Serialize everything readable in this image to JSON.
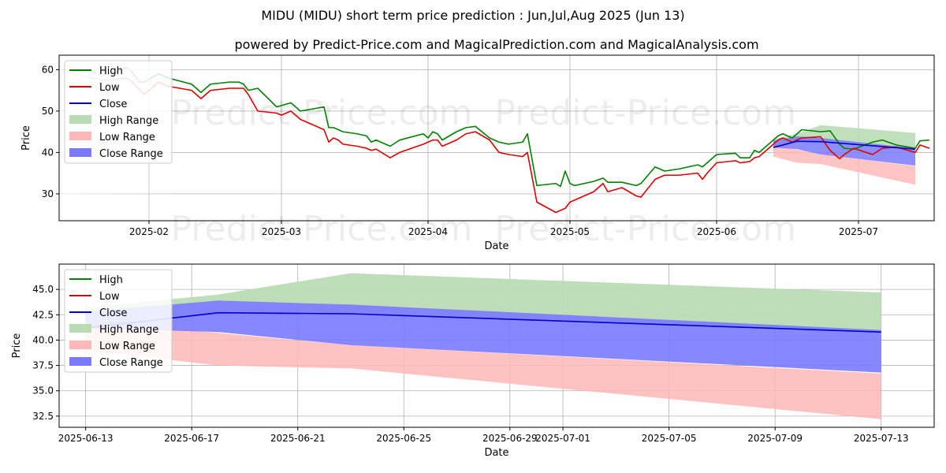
{
  "title": "MIDU (MIDU) short term price prediction : Jun,Jul,Aug 2025 (Jun 13)",
  "subtitle": "powered by Predict-Price.com and MagicalPrediction.com and MagicalAnalysis.com",
  "watermark": "Predict-Price.com",
  "colors": {
    "high": "#008000",
    "low": "#e00000",
    "close": "#0000cc",
    "high_range": "#b9dcb4",
    "low_range": "#ffb7b7",
    "close_range": "#7a7aff"
  },
  "legend": [
    "High",
    "Low",
    "Close",
    "High Range",
    "Low Range",
    "Close Range"
  ],
  "chart_data": [
    {
      "type": "line",
      "panel": "history",
      "xlabel": "Date",
      "ylabel": "Price",
      "ylim": [
        23.5,
        63.5
      ],
      "yticks": [
        30,
        40,
        50,
        60
      ],
      "xlim": [
        "2025-01-13",
        "2025-07-17"
      ],
      "xticks": [
        {
          "date": "2025-02-01",
          "label": "2025-02"
        },
        {
          "date": "2025-03-01",
          "label": "2025-03"
        },
        {
          "date": "2025-04-01",
          "label": "2025-04"
        },
        {
          "date": "2025-05-01",
          "label": "2025-05"
        },
        {
          "date": "2025-06-01",
          "label": "2025-06"
        },
        {
          "date": "2025-07-01",
          "label": "2025-07"
        }
      ],
      "high": [
        [
          "2025-01-14",
          61
        ],
        [
          "2025-01-16",
          60.5
        ],
        [
          "2025-01-20",
          59.5
        ],
        [
          "2025-01-22",
          58.5
        ],
        [
          "2025-01-24",
          59
        ],
        [
          "2025-01-27",
          60.5
        ],
        [
          "2025-01-28",
          60
        ],
        [
          "2025-01-30",
          57
        ],
        [
          "2025-01-31",
          57
        ],
        [
          "2025-02-03",
          59
        ],
        [
          "2025-02-05",
          58
        ],
        [
          "2025-02-10",
          56.5
        ],
        [
          "2025-02-12",
          54.5
        ],
        [
          "2025-02-14",
          56.5
        ],
        [
          "2025-02-18",
          57
        ],
        [
          "2025-02-20",
          57
        ],
        [
          "2025-02-21",
          56.5
        ],
        [
          "2025-02-22",
          55
        ],
        [
          "2025-02-24",
          55.5
        ],
        [
          "2025-02-28",
          51
        ],
        [
          "2025-03-03",
          52
        ],
        [
          "2025-03-05",
          50
        ],
        [
          "2025-03-10",
          51
        ],
        [
          "2025-03-11",
          46
        ],
        [
          "2025-03-12",
          46
        ],
        [
          "2025-03-14",
          45
        ],
        [
          "2025-03-17",
          44.5
        ],
        [
          "2025-03-19",
          44
        ],
        [
          "2025-03-20",
          42.5
        ],
        [
          "2025-03-21",
          43
        ],
        [
          "2025-03-24",
          41.5
        ],
        [
          "2025-03-26",
          43
        ],
        [
          "2025-03-31",
          44.5
        ],
        [
          "2025-04-01",
          43.5
        ],
        [
          "2025-04-02",
          45
        ],
        [
          "2025-04-03",
          44.5
        ],
        [
          "2025-04-04",
          43
        ],
        [
          "2025-04-07",
          45
        ],
        [
          "2025-04-09",
          46
        ],
        [
          "2025-04-11",
          46.3
        ],
        [
          "2025-04-14",
          43.5
        ],
        [
          "2025-04-16",
          42.5
        ],
        [
          "2025-04-18",
          42
        ],
        [
          "2025-04-21",
          42.5
        ],
        [
          "2025-04-22",
          44.5
        ],
        [
          "2025-04-24",
          32
        ],
        [
          "2025-04-28",
          32.5
        ],
        [
          "2025-04-29",
          31.8
        ],
        [
          "2025-04-30",
          35.5
        ],
        [
          "2025-05-01",
          32.5
        ],
        [
          "2025-05-02",
          32
        ],
        [
          "2025-05-06",
          33
        ],
        [
          "2025-05-08",
          33.8
        ],
        [
          "2025-05-09",
          32.8
        ],
        [
          "2025-05-12",
          32.8
        ],
        [
          "2025-05-15",
          32
        ],
        [
          "2025-05-16",
          32.5
        ],
        [
          "2025-05-19",
          36.5
        ],
        [
          "2025-05-21",
          35.5
        ],
        [
          "2025-05-24",
          36
        ],
        [
          "2025-05-28",
          37
        ],
        [
          "2025-05-29",
          36.5
        ],
        [
          "2025-05-30",
          37.5
        ],
        [
          "2025-06-01",
          39.5
        ],
        [
          "2025-06-05",
          39.8
        ],
        [
          "2025-06-06",
          38.7
        ],
        [
          "2025-06-08",
          38.7
        ],
        [
          "2025-06-09",
          40.5
        ],
        [
          "2025-06-10",
          40
        ],
        [
          "2025-06-14",
          44
        ],
        [
          "2025-06-15",
          44.5
        ],
        [
          "2025-06-17",
          43.5
        ],
        [
          "2025-06-19",
          45.5
        ],
        [
          "2025-06-23",
          45
        ],
        [
          "2025-06-25",
          45.2
        ],
        [
          "2025-06-27",
          42
        ],
        [
          "2025-06-28",
          41
        ],
        [
          "2025-06-30",
          40.8
        ],
        [
          "2025-07-04",
          42.5
        ],
        [
          "2025-07-06",
          43
        ],
        [
          "2025-07-09",
          41.8
        ],
        [
          "2025-07-13",
          41
        ],
        [
          "2025-07-14",
          42.8
        ],
        [
          "2025-07-16",
          43
        ]
      ],
      "low": [
        [
          "2025-01-14",
          60
        ],
        [
          "2025-01-16",
          59
        ],
        [
          "2025-01-20",
          58
        ],
        [
          "2025-01-22",
          57.5
        ],
        [
          "2025-01-24",
          57.5
        ],
        [
          "2025-01-27",
          58
        ],
        [
          "2025-01-28",
          57.5
        ],
        [
          "2025-01-31",
          54
        ],
        [
          "2025-02-03",
          57
        ],
        [
          "2025-02-05",
          56
        ],
        [
          "2025-02-10",
          55
        ],
        [
          "2025-02-12",
          53
        ],
        [
          "2025-02-14",
          55
        ],
        [
          "2025-02-18",
          55.5
        ],
        [
          "2025-02-20",
          55.5
        ],
        [
          "2025-02-21",
          55.5
        ],
        [
          "2025-02-22",
          54
        ],
        [
          "2025-02-24",
          50
        ],
        [
          "2025-02-28",
          49.5
        ],
        [
          "2025-03-01",
          49
        ],
        [
          "2025-03-03",
          50
        ],
        [
          "2025-03-05",
          48
        ],
        [
          "2025-03-09",
          46
        ],
        [
          "2025-03-10",
          45.5
        ],
        [
          "2025-03-11",
          42.5
        ],
        [
          "2025-03-12",
          43.5
        ],
        [
          "2025-03-13",
          43
        ],
        [
          "2025-03-14",
          42
        ],
        [
          "2025-03-17",
          41.5
        ],
        [
          "2025-03-19",
          41
        ],
        [
          "2025-03-20",
          40.5
        ],
        [
          "2025-03-21",
          40.8
        ],
        [
          "2025-03-24",
          38.7
        ],
        [
          "2025-03-26",
          40
        ],
        [
          "2025-03-31",
          42
        ],
        [
          "2025-04-01",
          42.5
        ],
        [
          "2025-04-02",
          43
        ],
        [
          "2025-04-03",
          43
        ],
        [
          "2025-04-04",
          41.5
        ],
        [
          "2025-04-07",
          43
        ],
        [
          "2025-04-09",
          44.5
        ],
        [
          "2025-04-11",
          45
        ],
        [
          "2025-04-14",
          43
        ],
        [
          "2025-04-16",
          40
        ],
        [
          "2025-04-18",
          39.5
        ],
        [
          "2025-04-21",
          39
        ],
        [
          "2025-04-22",
          40
        ],
        [
          "2025-04-24",
          28
        ],
        [
          "2025-04-28",
          25.5
        ],
        [
          "2025-04-29",
          26
        ],
        [
          "2025-04-30",
          26.5
        ],
        [
          "2025-05-01",
          28
        ],
        [
          "2025-05-02",
          28.5
        ],
        [
          "2025-05-06",
          30.5
        ],
        [
          "2025-05-08",
          32.5
        ],
        [
          "2025-05-09",
          30.5
        ],
        [
          "2025-05-12",
          31.5
        ],
        [
          "2025-05-15",
          29.5
        ],
        [
          "2025-05-16",
          29.2
        ],
        [
          "2025-05-19",
          33.5
        ],
        [
          "2025-05-21",
          34.5
        ],
        [
          "2025-05-24",
          34.5
        ],
        [
          "2025-05-28",
          35
        ],
        [
          "2025-05-29",
          33.5
        ],
        [
          "2025-05-30",
          35
        ],
        [
          "2025-06-01",
          37.5
        ],
        [
          "2025-06-05",
          38
        ],
        [
          "2025-06-06",
          37.5
        ],
        [
          "2025-06-08",
          37.8
        ],
        [
          "2025-06-09",
          38.7
        ],
        [
          "2025-06-10",
          39
        ],
        [
          "2025-06-14",
          43
        ],
        [
          "2025-06-15",
          43.5
        ],
        [
          "2025-06-17",
          42.5
        ],
        [
          "2025-06-19",
          43.5
        ],
        [
          "2025-06-23",
          43.8
        ],
        [
          "2025-06-25",
          40.5
        ],
        [
          "2025-06-27",
          38.5
        ],
        [
          "2025-06-28",
          39.5
        ],
        [
          "2025-06-30",
          41
        ],
        [
          "2025-07-04",
          39.5
        ],
        [
          "2025-07-06",
          41
        ],
        [
          "2025-07-09",
          41.3
        ],
        [
          "2025-07-13",
          40
        ],
        [
          "2025-07-14",
          41.8
        ],
        [
          "2025-07-16",
          41
        ]
      ]
    },
    {
      "type": "area",
      "panel": "forecast",
      "xlabel": "Date",
      "ylabel": "Price",
      "ylim": [
        31.4,
        47.5
      ],
      "yticks": [
        32.5,
        35.0,
        37.5,
        40.0,
        42.5,
        45.0
      ],
      "xlim": [
        "2025-06-12",
        "2025-07-15"
      ],
      "xticks": [
        "2025-06-13",
        "2025-06-17",
        "2025-06-21",
        "2025-06-25",
        "2025-06-29",
        "2025-07-01",
        "2025-07-05",
        "2025-07-09",
        "2025-07-13"
      ],
      "x": [
        "2025-06-13",
        "2025-06-18",
        "2025-06-23",
        "2025-07-13"
      ],
      "high_range": [
        [
          43.2,
          41.5
        ],
        [
          44.5,
          42.7
        ],
        [
          46.6,
          42.6
        ],
        [
          44.7,
          40.8
        ]
      ],
      "close_range": [
        [
          42.8,
          41.2
        ],
        [
          43.9,
          40.8
        ],
        [
          43.5,
          39.5
        ],
        [
          41.0,
          36.8
        ]
      ],
      "low_range": [
        [
          42.0,
          39.0
        ],
        [
          40.7,
          37.5
        ],
        [
          39.5,
          37.2
        ],
        [
          36.7,
          32.2
        ]
      ],
      "close": [
        41.2,
        42.7,
        42.6,
        40.8
      ]
    }
  ]
}
